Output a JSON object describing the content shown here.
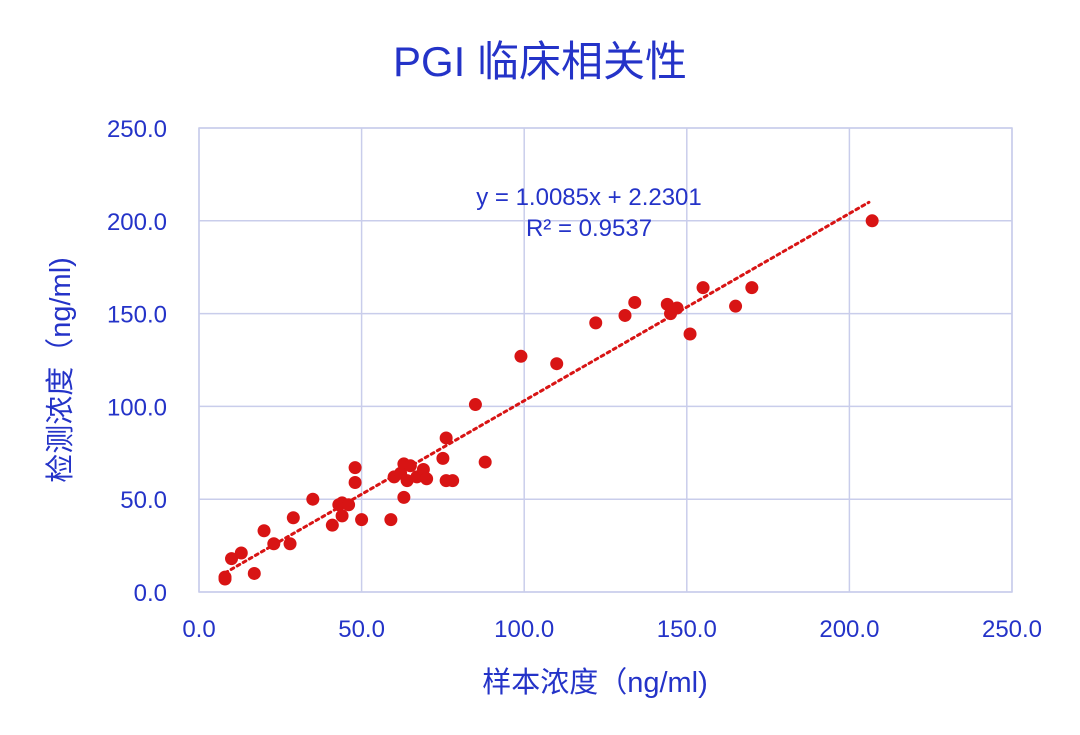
{
  "colors": {
    "text": "#2433C8",
    "grid": "#C9CDEB",
    "points": "#D81414",
    "trendline": "#D81414",
    "background": "#FFFFFF"
  },
  "chart_data": {
    "type": "scatter",
    "title": "PGI 临床相关性",
    "xlabel": "样本浓度（ng/ml)",
    "ylabel": "检测浓度（ng/ml)",
    "xlim": [
      0,
      250
    ],
    "ylim": [
      0,
      250
    ],
    "x_ticks": [
      "0.0",
      "50.0",
      "100.0",
      "150.0",
      "200.0",
      "250.0"
    ],
    "y_ticks": [
      "0.0",
      "50.0",
      "100.0",
      "150.0",
      "200.0",
      "250.0"
    ],
    "grid": true,
    "legend": "none",
    "trendline": {
      "type": "linear",
      "slope": 1.0085,
      "intercept": 2.2301,
      "equation": "y = 1.0085x + 2.2301",
      "r_squared": "R² = 0.9537",
      "style": "dotted",
      "x_range": [
        8,
        206
      ]
    },
    "points": [
      {
        "x": 8,
        "y": 7
      },
      {
        "x": 8,
        "y": 8
      },
      {
        "x": 10,
        "y": 18
      },
      {
        "x": 13,
        "y": 21
      },
      {
        "x": 17,
        "y": 10
      },
      {
        "x": 20,
        "y": 33
      },
      {
        "x": 23,
        "y": 26
      },
      {
        "x": 28,
        "y": 26
      },
      {
        "x": 29,
        "y": 40
      },
      {
        "x": 35,
        "y": 50
      },
      {
        "x": 41,
        "y": 36
      },
      {
        "x": 43,
        "y": 47
      },
      {
        "x": 44,
        "y": 41
      },
      {
        "x": 44,
        "y": 48
      },
      {
        "x": 46,
        "y": 47
      },
      {
        "x": 48,
        "y": 59
      },
      {
        "x": 48,
        "y": 67
      },
      {
        "x": 50,
        "y": 39
      },
      {
        "x": 59,
        "y": 39
      },
      {
        "x": 60,
        "y": 62
      },
      {
        "x": 62,
        "y": 64
      },
      {
        "x": 63,
        "y": 51
      },
      {
        "x": 63,
        "y": 69
      },
      {
        "x": 64,
        "y": 60
      },
      {
        "x": 65,
        "y": 68
      },
      {
        "x": 67,
        "y": 62
      },
      {
        "x": 69,
        "y": 66
      },
      {
        "x": 70,
        "y": 61
      },
      {
        "x": 75,
        "y": 72
      },
      {
        "x": 76,
        "y": 83
      },
      {
        "x": 76,
        "y": 60
      },
      {
        "x": 78,
        "y": 60
      },
      {
        "x": 85,
        "y": 101
      },
      {
        "x": 88,
        "y": 70
      },
      {
        "x": 99,
        "y": 127
      },
      {
        "x": 110,
        "y": 123
      },
      {
        "x": 122,
        "y": 145
      },
      {
        "x": 131,
        "y": 149
      },
      {
        "x": 134,
        "y": 156
      },
      {
        "x": 144,
        "y": 155
      },
      {
        "x": 145,
        "y": 150
      },
      {
        "x": 147,
        "y": 153
      },
      {
        "x": 151,
        "y": 139
      },
      {
        "x": 155,
        "y": 164
      },
      {
        "x": 165,
        "y": 154
      },
      {
        "x": 170,
        "y": 164
      },
      {
        "x": 207,
        "y": 200
      }
    ]
  }
}
